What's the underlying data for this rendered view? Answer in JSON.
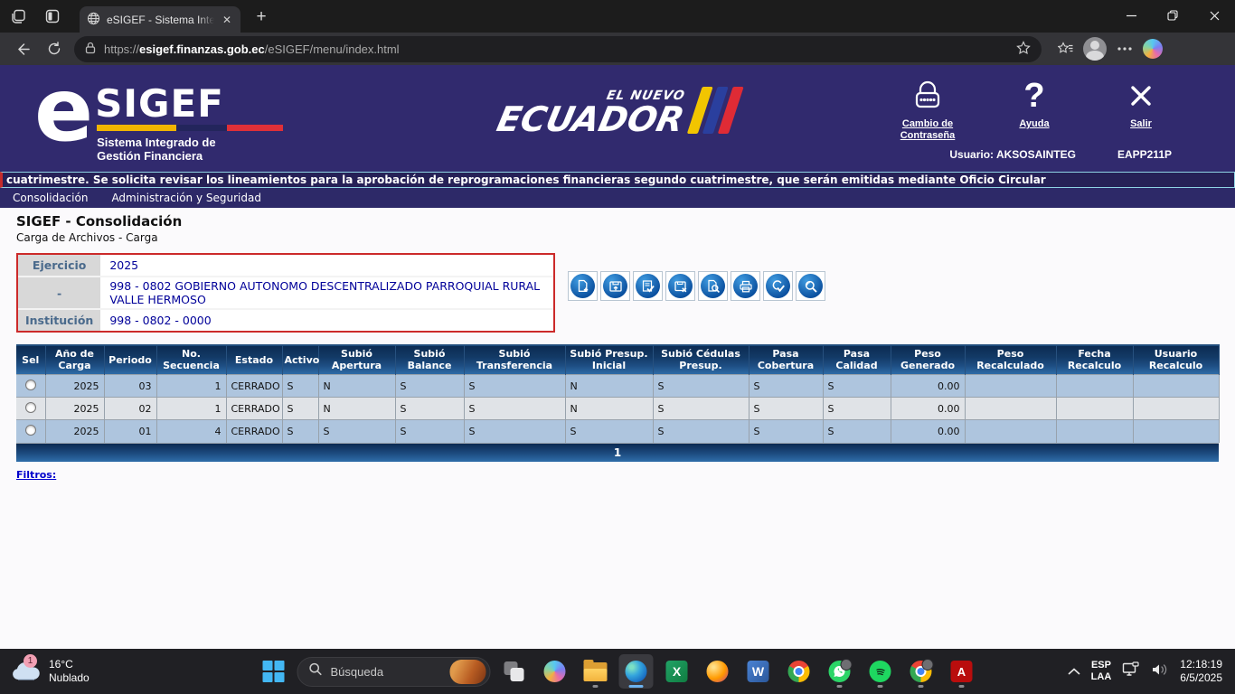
{
  "browser": {
    "tab": {
      "title": "eSIGEF - Sistema Integrado de Ge"
    },
    "address": {
      "protocol": "https://",
      "domain": "esigef.finanzas.gob.ec",
      "path": "/eSIGEF/menu/index.html"
    }
  },
  "header": {
    "logo": {
      "e": "e",
      "name": "SIGEF",
      "subtitle_line1": "Sistema Integrado de",
      "subtitle_line2": "Gestión Financiera"
    },
    "ecuador": {
      "top": "EL NUEVO",
      "main": "ECUADOR"
    },
    "actions": {
      "change_password": "Cambio de Contraseña",
      "help": "Ayuda",
      "exit": "Salir"
    },
    "user": "Usuario: AKSOSAINTEG",
    "session_code": "EAPP211P"
  },
  "marquee": {
    "text": "cuatrimestre. Se solicita revisar los lineamientos para la aprobación de reprogramaciones financieras segundo cuatrimestre, que serán emitidas mediante Oficio Circular"
  },
  "menu": {
    "items": [
      "Consolidación",
      "Administración y Seguridad"
    ]
  },
  "page": {
    "title": "SIGEF - Consolidación",
    "subtitle": "Carga de Archivos - Carga",
    "form": {
      "rows": [
        {
          "label": "Ejercicio",
          "value": "2025"
        },
        {
          "label": "-",
          "value": "998 - 0802 GOBIERNO AUTONOMO DESCENTRALIZADO PARROQUIAL RURAL VALLE HERMOSO"
        },
        {
          "label": "Institución",
          "value": "998 - 0802 - 0000"
        }
      ]
    },
    "toolbar_icons": [
      "new-record-icon",
      "save-record-icon",
      "validate-record-icon",
      "delete-record-icon",
      "preview-record-icon",
      "print-icon",
      "approve-record-icon",
      "search-records-icon"
    ],
    "table": {
      "headers": [
        "Sel",
        "Año de Carga",
        "Periodo",
        "No. Secuencia",
        "Estado",
        "Activo",
        "Subió Apertura",
        "Subió Balance",
        "Subió Transferencia",
        "Subió Presup. Inicial",
        "Subió Cédulas Presup.",
        "Pasa Cobertura",
        "Pasa Calidad",
        "Peso Generado",
        "Peso Recalculado",
        "Fecha Recalculo",
        "Usuario Recalculo"
      ],
      "rows": [
        [
          "2025",
          "03",
          "1",
          "CERRADO",
          "S",
          "N",
          "S",
          "S",
          "N",
          "S",
          "S",
          "S",
          "0.00",
          "",
          "",
          ""
        ],
        [
          "2025",
          "02",
          "1",
          "CERRADO",
          "S",
          "N",
          "S",
          "S",
          "N",
          "S",
          "S",
          "S",
          "0.00",
          "",
          "",
          ""
        ],
        [
          "2025",
          "01",
          "4",
          "CERRADO",
          "S",
          "S",
          "S",
          "S",
          "S",
          "S",
          "S",
          "S",
          "0.00",
          "",
          "",
          ""
        ]
      ],
      "page_number": "1"
    },
    "filters_link": "Filtros:"
  },
  "taskbar": {
    "weather": {
      "badge": "1",
      "temp": "16°C",
      "condition": "Nublado"
    },
    "search": {
      "placeholder": "Búsqueda"
    },
    "tray": {
      "lang_top": "ESP",
      "lang_bottom": "LAA",
      "time": "12:18:19",
      "date": "6/5/2025"
    }
  },
  "colors": {
    "header_bg": "#312a6e",
    "menu_bg": "#2d2968",
    "grid_header_top": "#0c2b52",
    "grid_header_bottom": "#2f6da9",
    "row_blue": "#aec5de",
    "row_gray": "#e0e3e7",
    "criteria_border": "#cc2a2a",
    "link": "#0000cc"
  }
}
